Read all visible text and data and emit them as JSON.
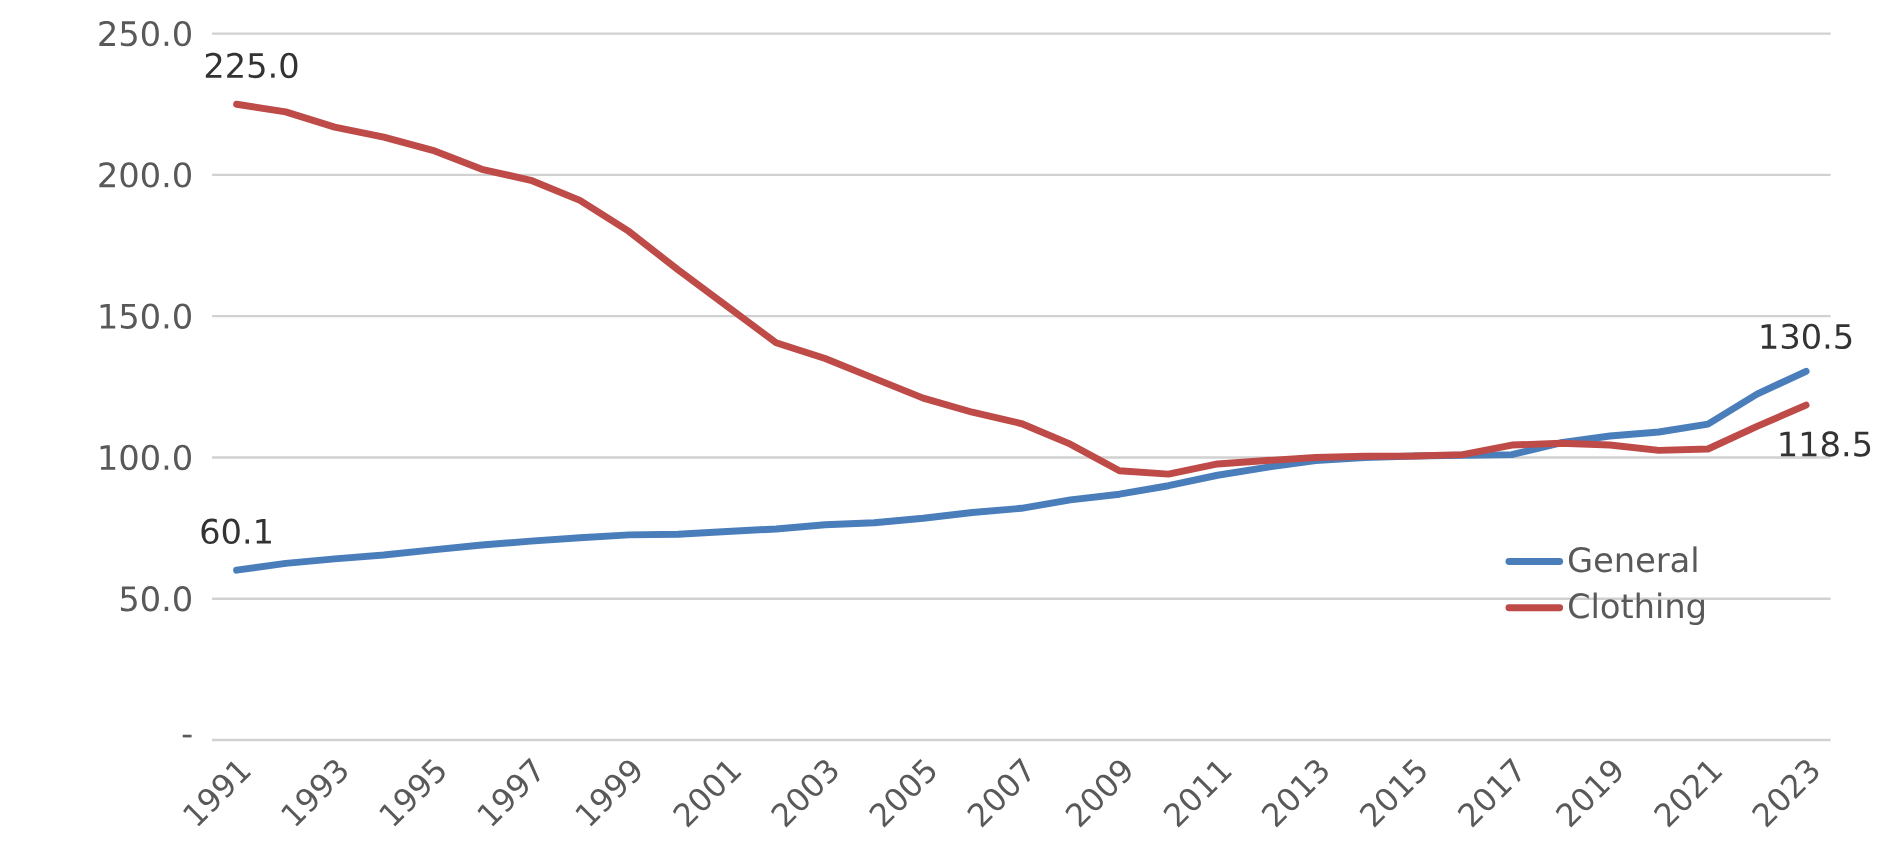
{
  "chart_data": {
    "type": "line",
    "x": [
      1991,
      1992,
      1993,
      1994,
      1995,
      1996,
      1997,
      1998,
      1999,
      2000,
      2001,
      2002,
      2003,
      2004,
      2005,
      2006,
      2007,
      2008,
      2009,
      2010,
      2011,
      2012,
      2013,
      2014,
      2015,
      2016,
      2017,
      2018,
      2019,
      2020,
      2021,
      2022,
      2023
    ],
    "series": [
      {
        "name": "General",
        "color": "#4a7ebb",
        "values": [
          60.1,
          62.5,
          64.1,
          65.5,
          67.3,
          69.0,
          70.4,
          71.6,
          72.6,
          72.8,
          73.8,
          74.7,
          76.2,
          76.9,
          78.5,
          80.5,
          82.0,
          85.0,
          87.0,
          90.0,
          93.7,
          96.5,
          98.9,
          100.0,
          100.5,
          100.8,
          101.0,
          105.2,
          107.6,
          109.0,
          111.8,
          122.4,
          130.5
        ],
        "value_labels": [
          "60.1",
          null,
          null,
          null,
          null,
          null,
          null,
          null,
          null,
          null,
          null,
          null,
          null,
          null,
          null,
          null,
          null,
          null,
          null,
          null,
          null,
          null,
          null,
          null,
          null,
          null,
          null,
          null,
          null,
          null,
          null,
          null,
          "130.5"
        ]
      },
      {
        "name": "Clothing",
        "color": "#be4b48",
        "values": [
          225.0,
          222.3,
          216.9,
          213.4,
          208.7,
          202.0,
          198.1,
          191.0,
          180.0,
          166.4,
          153.5,
          140.6,
          135.0,
          128.0,
          121.0,
          116.0,
          112.0,
          104.7,
          95.3,
          94.1,
          97.7,
          98.9,
          100.0,
          100.4,
          100.5,
          101.0,
          104.4,
          105.0,
          104.4,
          102.5,
          103.0,
          111.0,
          118.5
        ],
        "value_labels": [
          "225.0",
          null,
          null,
          null,
          null,
          null,
          null,
          null,
          null,
          null,
          null,
          null,
          null,
          null,
          null,
          null,
          null,
          null,
          null,
          null,
          null,
          null,
          null,
          null,
          null,
          null,
          null,
          null,
          null,
          null,
          null,
          null,
          "118.5"
        ]
      }
    ],
    "xlim": [
      1990.5,
      2023.5
    ],
    "xticks": [
      1991,
      1993,
      1995,
      1997,
      1999,
      2001,
      2003,
      2005,
      2007,
      2009,
      2011,
      2013,
      2015,
      2017,
      2019,
      2021,
      2023
    ],
    "ylim": [
      0,
      250
    ],
    "yticks": [
      {
        "value": 0,
        "label": "-"
      },
      {
        "value": 50,
        "label": "50.0"
      },
      {
        "value": 100,
        "label": "100.0"
      },
      {
        "value": 150,
        "label": "150.0"
      },
      {
        "value": 200,
        "label": "200.0"
      },
      {
        "value": 250,
        "label": "250.0"
      }
    ],
    "grid": "y",
    "legend": "right",
    "marker": "none",
    "line_style": "solid"
  }
}
